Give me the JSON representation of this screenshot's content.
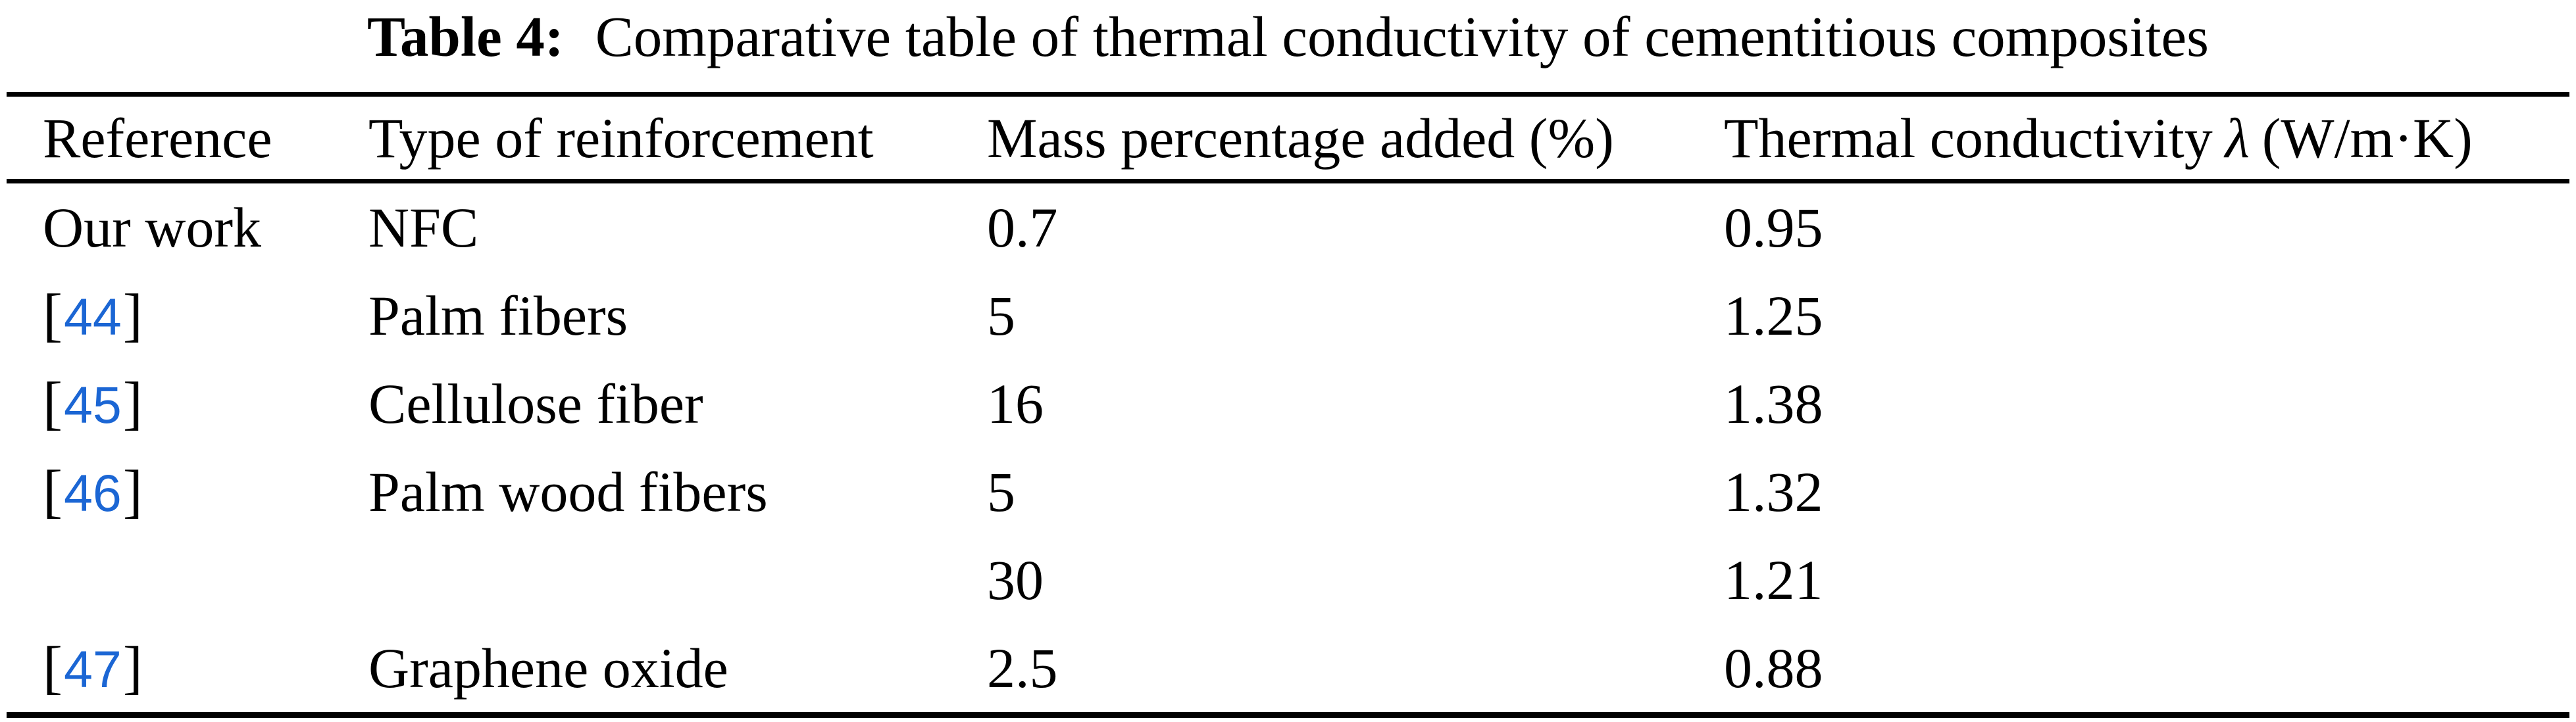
{
  "page": {
    "background": "#ffffff",
    "text_color": "#000000",
    "link_color": "#1b66d4"
  },
  "caption": {
    "label": "Table 4:",
    "text": "Comparative table of thermal conductivity of cementitious composites"
  },
  "table": {
    "bracket_open": "[",
    "bracket_close": "]",
    "columns": [
      {
        "label": "Reference"
      },
      {
        "label": "Type of reinforcement"
      },
      {
        "label": "Mass percentage added (%)"
      },
      {
        "label_pre": "Thermal conductivity",
        "symbol": "λ",
        "label_post": "(W/m·K)"
      }
    ],
    "rows": [
      {
        "ref_text": "Our work",
        "type": "NFC",
        "mass": "0.7",
        "conductivity": "0.95"
      },
      {
        "ref_num": "44",
        "type": "Palm fibers",
        "mass": "5",
        "conductivity": "1.25"
      },
      {
        "ref_num": "45",
        "type": "Cellulose fiber",
        "mass": "16",
        "conductivity": "1.38"
      },
      {
        "ref_num": "46",
        "type": "Palm wood fibers",
        "mass": "5",
        "conductivity": "1.32"
      },
      {
        "ref_text": "",
        "type": "",
        "mass": "30",
        "conductivity": "1.21"
      },
      {
        "ref_num": "47",
        "type": "Graphene oxide",
        "mass": "2.5",
        "conductivity": "0.88"
      }
    ]
  }
}
